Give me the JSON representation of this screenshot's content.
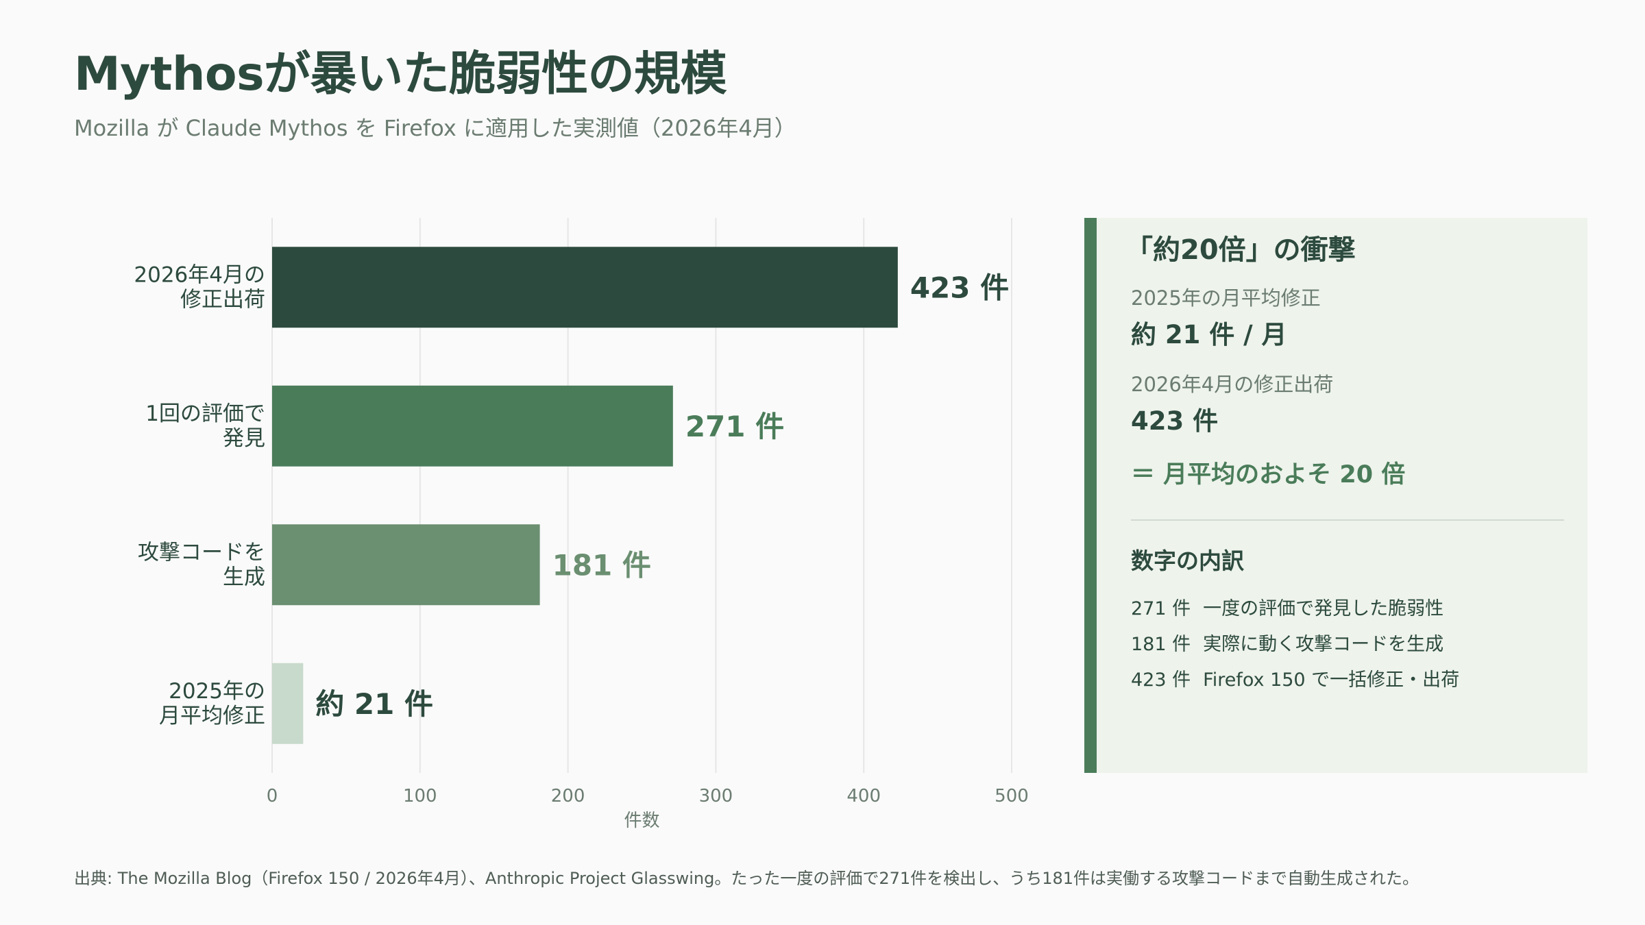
{
  "title": "Mythosが暴いた脆弱性の規模",
  "subtitle": "Mozilla が Claude Mythos を Firefox に適用した実測値（2026年4月）",
  "chart_data": {
    "type": "bar",
    "orientation": "horizontal",
    "categories": [
      [
        "2026年4月の",
        "修正出荷"
      ],
      [
        "1回の評価で",
        "発見"
      ],
      [
        "攻撃コードを",
        "生成"
      ],
      [
        "2025年の",
        "月平均修正"
      ]
    ],
    "values": [
      423,
      271,
      181,
      21
    ],
    "value_labels": [
      "423 件",
      "271 件",
      "181 件",
      "約 21 件"
    ],
    "colors": [
      "#2d4a3e",
      "#4a7c59",
      "#6b8f71",
      "#c8dacb"
    ],
    "label_colors": [
      "#2d4a3e",
      "#4a7c59",
      "#6b8f71",
      "#2d4a3e"
    ],
    "xlabel": "件数",
    "xlim": [
      0,
      500
    ],
    "xticks": [
      0,
      100,
      200,
      300,
      400,
      500
    ],
    "grid": true
  },
  "panel": {
    "title": "「約20倍」の衝撃",
    "stat1_label": "2025年の月平均修正",
    "stat1_value": "約 21 件 / 月",
    "stat2_label": "2026年4月の修正出荷",
    "stat2_value": "423 件",
    "ratio": "＝ 月平均のおよそ 20 倍",
    "breakdown_title": "数字の内訳",
    "breakdown": [
      {
        "num": "271 件",
        "text": "一度の評価で発見した脆弱性"
      },
      {
        "num": "181 件",
        "text": "実際に動く攻撃コードを生成"
      },
      {
        "num": "423 件",
        "text": "Firefox 150 で一括修正・出荷"
      }
    ]
  },
  "footer": "出典: The Mozilla Blog（Firefox 150 / 2026年4月）、Anthropic Project Glasswing。たった一度の評価で271件を検出し、うち181件は実働する攻撃コードまで自動生成された。",
  "colors": {
    "accent_dark": "#2d4a3e",
    "accent": "#4a7c59",
    "accent_mid": "#6b8f71",
    "accent_light": "#c8dacb",
    "panel_bg": "#eef3ec"
  }
}
